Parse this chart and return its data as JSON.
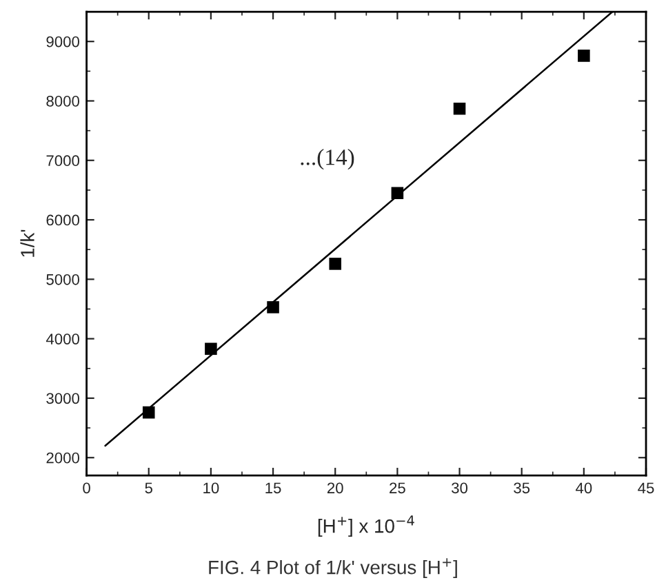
{
  "chart_data": {
    "type": "scatter",
    "title": "FIG. 4 Plot of 1/k' versus [H$^{+}$]",
    "xlabel": "[H$^{+}$] x 10$^{−4}$",
    "ylabel": "1/k'",
    "annotations": [
      "...(14)"
    ],
    "x": [
      5,
      10,
      15,
      20,
      25,
      30,
      40
    ],
    "series": [
      {
        "color": "#000000",
        "marker": "square",
        "values": [
          2760,
          3830,
          4530,
          5260,
          6450,
          7870,
          8760
        ]
      },
      {
        "type": "line",
        "color": "#000000",
        "line_style": "solid",
        "x": [
          1.5,
          42.3
        ],
        "values": [
          2200,
          9500
        ]
      }
    ],
    "xlim": [
      0,
      45
    ],
    "xticks": [
      0,
      5,
      10,
      15,
      20,
      25,
      30,
      35,
      40,
      45
    ],
    "ylim": [
      1700,
      9500
    ],
    "yticks": [
      2000,
      3000,
      4000,
      5000,
      6000,
      7000,
      8000,
      9000
    ],
    "grid": false,
    "legend": false
  }
}
